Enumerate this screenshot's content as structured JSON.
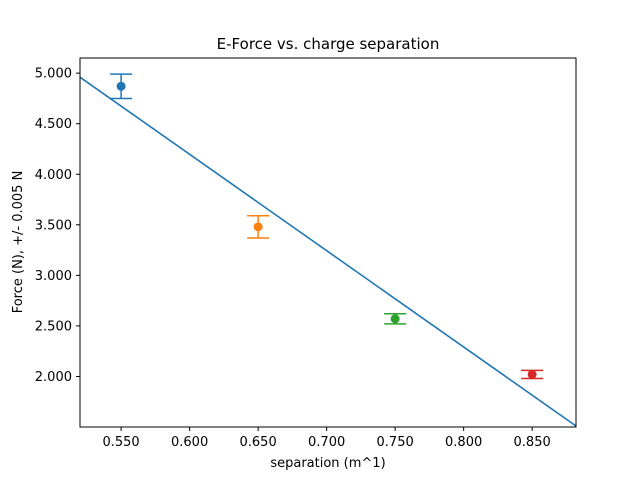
{
  "chart_data": {
    "type": "scatter",
    "title": "E-Force vs. charge separation",
    "xlabel": "separation (m^1)",
    "ylabel": "Force (N), +/- 0.005 N",
    "xlim": [
      0.52,
      0.882
    ],
    "ylim": [
      1.5,
      5.15
    ],
    "grid": false,
    "x_ticks": [
      {
        "value": 0.55,
        "label": "0.550"
      },
      {
        "value": 0.6,
        "label": "0.600"
      },
      {
        "value": 0.65,
        "label": "0.650"
      },
      {
        "value": 0.7,
        "label": "0.700"
      },
      {
        "value": 0.75,
        "label": "0.750"
      },
      {
        "value": 0.8,
        "label": "0.800"
      },
      {
        "value": 0.85,
        "label": "0.850"
      }
    ],
    "y_ticks": [
      {
        "value": 2.0,
        "label": "2.000"
      },
      {
        "value": 2.5,
        "label": "2.500"
      },
      {
        "value": 3.0,
        "label": "3.000"
      },
      {
        "value": 3.5,
        "label": "3.500"
      },
      {
        "value": 4.0,
        "label": "4.000"
      },
      {
        "value": 4.5,
        "label": "4.500"
      },
      {
        "value": 5.0,
        "label": "5.000"
      }
    ],
    "points": [
      {
        "x": 0.55,
        "y": 4.87,
        "yerr": 0.12,
        "color": "#1f77b4"
      },
      {
        "x": 0.65,
        "y": 3.48,
        "yerr": 0.11,
        "color": "#ff7f0e"
      },
      {
        "x": 0.75,
        "y": 2.57,
        "yerr": 0.05,
        "color": "#2ca02c"
      },
      {
        "x": 0.85,
        "y": 2.02,
        "yerr": 0.04,
        "color": "#d62728"
      }
    ],
    "fit_line": {
      "x": [
        0.52,
        0.882
      ],
      "y": [
        4.96,
        1.51
      ],
      "color": "#1f77b4"
    }
  }
}
